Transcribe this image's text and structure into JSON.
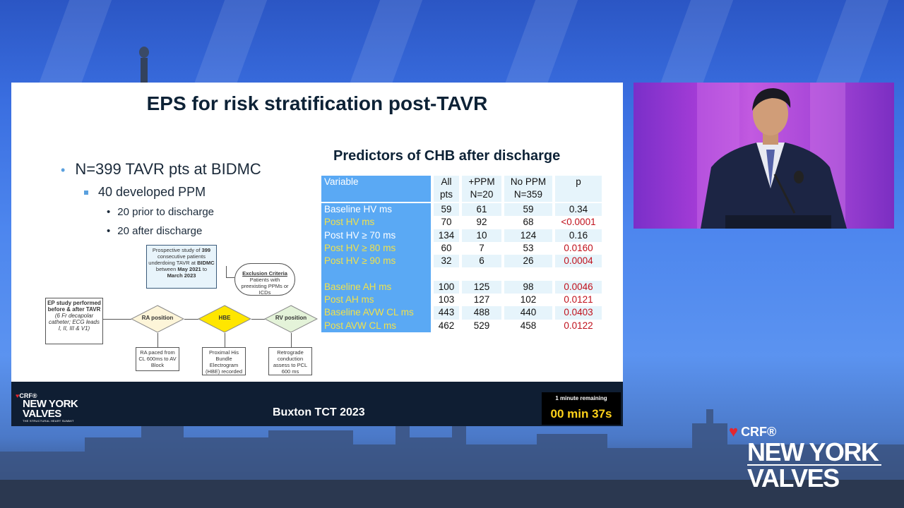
{
  "slide": {
    "title": "EPS for risk stratification post-TAVR",
    "bullet_main": "N=399 TAVR pts at BIDMC",
    "bullet_sub": "40 developed PPM",
    "bullet_sub_items": [
      "20 prior to discharge",
      "20 after discharge"
    ],
    "table_title": "Predictors of CHB after discharge",
    "table": {
      "headers": {
        "variable": "Variable",
        "all_1": "All",
        "all_2": "pts",
        "ppm_1": "+PPM",
        "ppm_2": "N=20",
        "noppm_1": "No PPM",
        "noppm_2": "N=359",
        "p": "p"
      },
      "rows": [
        {
          "variable": "Baseline HV ms",
          "all": "59",
          "ppm": "61",
          "noppm": "59",
          "p": "0.34"
        },
        {
          "variable": "Post HV ms",
          "all": "70",
          "ppm": "92",
          "noppm": "68",
          "p": "<0.0001"
        },
        {
          "variable": "Post HV ≥ 70 ms",
          "all": "134",
          "ppm": "10",
          "noppm": "124",
          "p": "0.16"
        },
        {
          "variable": "Post HV ≥ 80 ms",
          "all": "60",
          "ppm": "7",
          "noppm": "53",
          "p": "0.0160"
        },
        {
          "variable": "Post HV ≥ 90 ms",
          "all": "32",
          "ppm": "6",
          "noppm": "26",
          "p": "0.0004"
        },
        {
          "variable": "",
          "all": "",
          "ppm": "",
          "noppm": "",
          "p": ""
        },
        {
          "variable": "Baseline AH ms",
          "all": "100",
          "ppm": "125",
          "noppm": "98",
          "p": "0.0046"
        },
        {
          "variable": "Post AH ms",
          "all": "103",
          "ppm": "127",
          "noppm": "102",
          "p": "0.0121"
        },
        {
          "variable": "Baseline AVW CL ms",
          "all": "443",
          "ppm": "488",
          "noppm": "440",
          "p": "0.0403"
        },
        {
          "variable": "Post  AVW  CL ms",
          "all": "462",
          "ppm": "529",
          "noppm": "458",
          "p": "0.0122"
        }
      ]
    },
    "flow": {
      "prospective_1": "Prospective study of",
      "prospective_n": "399",
      "prospective_2": "consecutive patients underdoing TAVR at",
      "prospective_site": "BIDMC",
      "prospective_3": "between",
      "prospective_start": "May 2021",
      "prospective_4": "to",
      "prospective_end": "March 2023",
      "exclusion_title": "Exclusion Criteria",
      "exclusion_text": "Patients with preexisting PPMs or ICDs",
      "ep_study_bold": "EP study performed before & after TAVR",
      "ep_study_italic": "(6 Fr decapolar catheter; ECG leads I, II, III & V1)",
      "ra": "RA position",
      "hbe": "HBE",
      "rv": "RV position",
      "ra_note": "RA paced from CL 600ms to AV Block",
      "hbe_note": "Proximal His Bundle Electrogram (HBE) recorded",
      "rv_note": "Retrograde conduction assess to PCL 600 ms"
    },
    "footer": {
      "center": "Buxton TCT 2023",
      "logo_crf": "CRF®",
      "logo_ny": "NEW YORK",
      "logo_valves": "VALVES",
      "logo_tag": "THE STRUCTURAL HEART SUMMIT",
      "timer_top": "1 minute remaining",
      "timer_bottom": "00 min 37s"
    }
  },
  "brand": {
    "crf": "CRF®",
    "line1": "NEW YORK",
    "line2": "VALVES"
  },
  "colors": {
    "table_header": "#5aa9f4",
    "p_significant": "#c0101b",
    "timer_text": "#ffd21a",
    "hbe_diamond": "#ffe600"
  }
}
